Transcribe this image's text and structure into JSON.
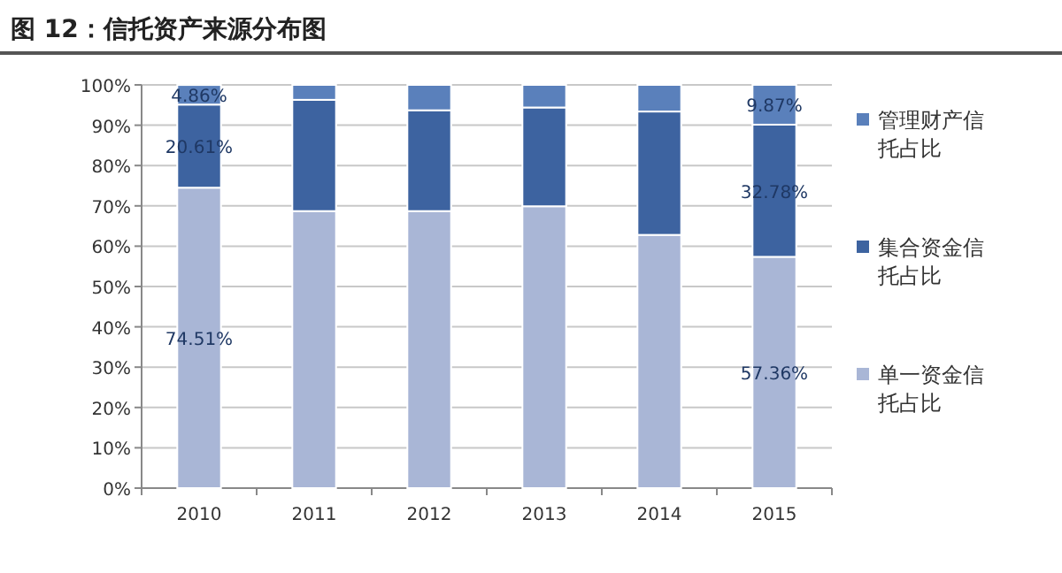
{
  "chart_data": {
    "type": "bar",
    "title": "图 12：信托资产来源分布图",
    "stacked": true,
    "categories": [
      "2010",
      "2011",
      "2012",
      "2013",
      "2014",
      "2015"
    ],
    "series": [
      {
        "name": "单一资金信托占比",
        "color": "#a9b6d6",
        "values": [
          74.51,
          68.7,
          68.7,
          69.9,
          62.8,
          57.36
        ],
        "value_labels": [
          "74.51%",
          null,
          null,
          null,
          null,
          "57.36%"
        ]
      },
      {
        "name": "集合资金信托占比",
        "color": "#3d63a0",
        "values": [
          20.61,
          27.6,
          25.0,
          24.5,
          30.6,
          32.78
        ],
        "value_labels": [
          "20.61%",
          null,
          null,
          null,
          null,
          "32.78%"
        ]
      },
      {
        "name": "管理财产信托占比",
        "color": "#5a80bb",
        "values": [
          4.86,
          3.7,
          6.3,
          5.6,
          6.6,
          9.87
        ],
        "value_labels": [
          "4.86%",
          null,
          null,
          null,
          null,
          "9.87%"
        ]
      }
    ],
    "ylim": [
      0,
      100
    ],
    "yticks": [
      {
        "value": 0,
        "label": "0%"
      },
      {
        "value": 10,
        "label": "10%"
      },
      {
        "value": 20,
        "label": "20%"
      },
      {
        "value": 30,
        "label": "30%"
      },
      {
        "value": 40,
        "label": "40%"
      },
      {
        "value": 50,
        "label": "50%"
      },
      {
        "value": 60,
        "label": "60%"
      },
      {
        "value": 70,
        "label": "70%"
      },
      {
        "value": 80,
        "label": "80%"
      },
      {
        "value": 90,
        "label": "90%"
      },
      {
        "value": 100,
        "label": "100%"
      }
    ],
    "grid": "y",
    "legend": "right"
  }
}
